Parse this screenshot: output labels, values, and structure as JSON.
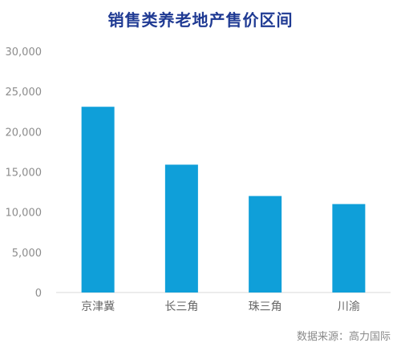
{
  "colors": {
    "title": "#1f3a93",
    "bar": "#0f9fd9",
    "axis": "#d9d9d9"
  },
  "source": "数据来源：高力国际",
  "chart_data": {
    "type": "bar",
    "title": "销售类养老地产售价区间",
    "categories": [
      "京津冀",
      "长三角",
      "珠三角",
      "川渝"
    ],
    "values": [
      23100,
      15900,
      12000,
      11000
    ],
    "ylim": [
      0,
      30000
    ],
    "yticks": [
      0,
      5000,
      10000,
      15000,
      20000,
      25000,
      30000
    ],
    "ytick_labels": [
      "0",
      "5,000",
      "10,000",
      "15,000",
      "20,000",
      "25,000",
      "30,000"
    ],
    "xlabel": "",
    "ylabel": "",
    "grid": false
  }
}
